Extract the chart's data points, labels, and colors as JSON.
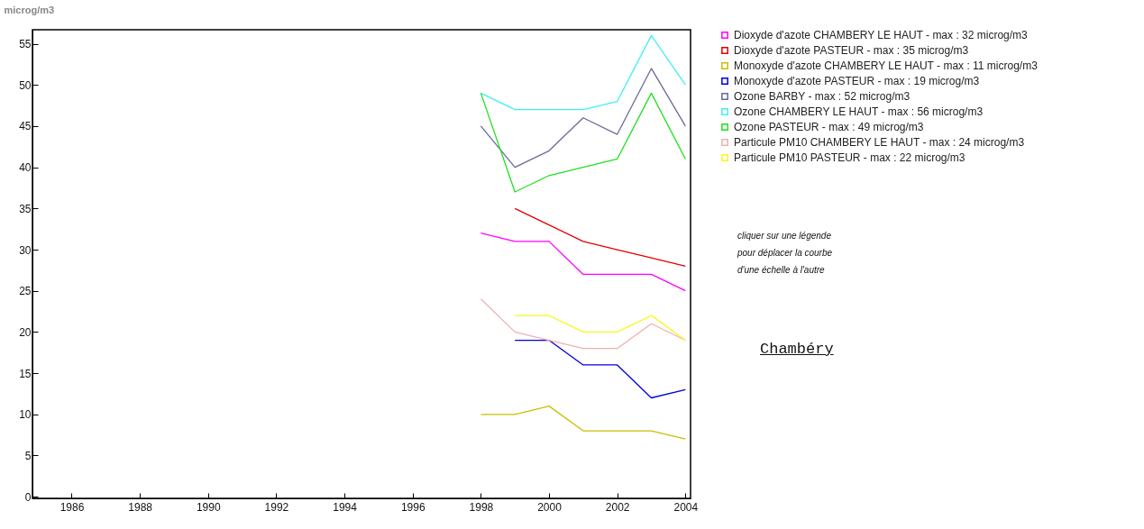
{
  "chart_data": {
    "type": "line",
    "ylabel": "microg/m3",
    "x": [
      1998,
      1999,
      2000,
      2001,
      2002,
      2003,
      2004
    ],
    "xlim": [
      1984.85,
      2004.15
    ],
    "xticks": [
      1986,
      1988,
      1990,
      1992,
      1994,
      1996,
      1998,
      2000,
      2002,
      2004
    ],
    "ylim": [
      -0.2,
      56.7
    ],
    "yticks": [
      0,
      5,
      10,
      15,
      20,
      25,
      30,
      35,
      40,
      45,
      50,
      55
    ],
    "grid": false,
    "legend": "right",
    "marker": "none",
    "line_style": "solid",
    "annotations": [
      "cliquer sur une légende\npour déplacer la courbe\nd'une échelle à l'autre",
      "Chambéry"
    ],
    "series": [
      {
        "name": "Dioxyde d'azote  CHAMBERY LE HAUT - max : 32 microg/m3",
        "color": "#ff00ff",
        "values": [
          32,
          31,
          31,
          27,
          27,
          27,
          25
        ]
      },
      {
        "name": "Dioxyde d'azote  PASTEUR - max : 35 microg/m3",
        "color": "#e00000",
        "values": [
          null,
          35,
          33,
          31,
          30,
          29,
          28
        ]
      },
      {
        "name": "Monoxyde d'azote  CHAMBERY LE HAUT - max : 11 microg/m3",
        "color": "#c8c000",
        "values": [
          10,
          10,
          11,
          8,
          8,
          8,
          7
        ]
      },
      {
        "name": "Monoxyde d'azote  PASTEUR - max : 19 microg/m3",
        "color": "#0000e0",
        "values": [
          null,
          19,
          19,
          16,
          16,
          12,
          13
        ]
      },
      {
        "name": "Ozone  BARBY - max : 52 microg/m3",
        "color": "#6a6a9a",
        "values": [
          45,
          40,
          42,
          46,
          44,
          52,
          45
        ]
      },
      {
        "name": "Ozone  CHAMBERY LE HAUT - max : 56 microg/m3",
        "color": "#40f0f0",
        "values": [
          49,
          47,
          47,
          47,
          48,
          56,
          50
        ]
      },
      {
        "name": "Ozone  PASTEUR - max : 49 microg/m3",
        "color": "#20e020",
        "values": [
          49,
          37,
          39,
          40,
          41,
          49,
          41
        ]
      },
      {
        "name": "Particule PM10  CHAMBERY LE HAUT - max : 24 microg/m3",
        "color": "#f0b0b0",
        "values": [
          24,
          20,
          19,
          18,
          18,
          21,
          19
        ]
      },
      {
        "name": "Particule PM10  PASTEUR - max : 22 microg/m3",
        "color": "#f8f820",
        "values": [
          null,
          22,
          22,
          20,
          20,
          22,
          19
        ]
      }
    ]
  }
}
